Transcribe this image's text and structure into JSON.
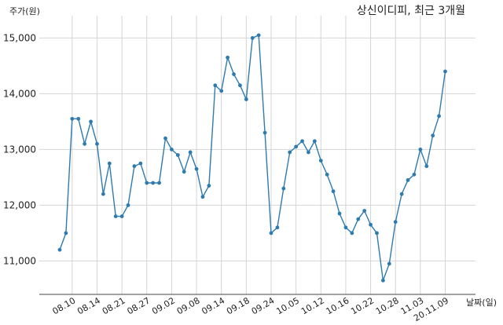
{
  "chart_data": {
    "type": "line",
    "title": "상신이디피, 최근 3개월",
    "ylabel": "주가(원)",
    "xlabel": "날짜(일)",
    "ylim": [
      10400,
      15400
    ],
    "yticks": [
      11000,
      12000,
      13000,
      14000,
      15000
    ],
    "ytick_labels": [
      "11,000",
      "12,000",
      "13,000",
      "14,000",
      "15,000"
    ],
    "xticks": [
      "08.10",
      "08.14",
      "08.21",
      "08.27",
      "09.02",
      "09.08",
      "09.14",
      "09.18",
      "09.24",
      "10.05",
      "10.12",
      "10.16",
      "10.22",
      "10.28",
      "11.03",
      "20.11.09"
    ],
    "xtick_positions": [
      2,
      6,
      10,
      14,
      18,
      22,
      26,
      30,
      34,
      38,
      42,
      46,
      50,
      54,
      58,
      62
    ],
    "grid": true,
    "color": "#2e7bb0",
    "series": [
      {
        "values": [
          11200,
          11500,
          13550,
          13550,
          13100,
          13500,
          13100,
          12200,
          12750,
          11800,
          11800,
          12000,
          12700,
          12750,
          12400,
          12400,
          12400,
          13200,
          13000,
          12900,
          12600,
          12950,
          12650,
          12150,
          12350,
          14150,
          14050,
          14650,
          14350,
          14150,
          13900,
          15000,
          15050,
          13300,
          11500,
          11600,
          12300,
          12950,
          13050,
          13150,
          12950,
          13150,
          12800,
          12550,
          12250,
          11850,
          11600,
          11500,
          11750,
          11900,
          11650,
          11500,
          10650,
          10950,
          11700,
          12200,
          12450,
          12550,
          13000,
          12700,
          13250,
          13600,
          14400
        ]
      }
    ]
  }
}
